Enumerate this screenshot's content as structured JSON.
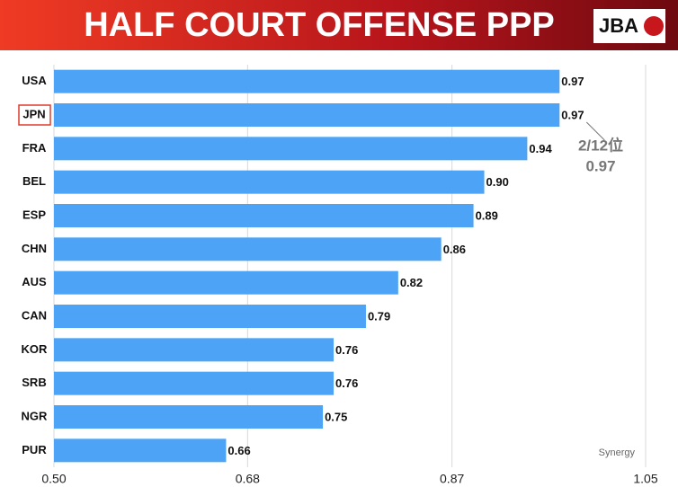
{
  "chart_data": {
    "type": "bar",
    "orientation": "horizontal",
    "title": "HALF COURT OFFENSE PPP",
    "logo": "JBA",
    "categories": [
      "USA",
      "JPN",
      "FRA",
      "BEL",
      "ESP",
      "CHN",
      "AUS",
      "CAN",
      "KOR",
      "SRB",
      "NGR",
      "PUR"
    ],
    "values": [
      0.97,
      0.97,
      0.94,
      0.9,
      0.89,
      0.86,
      0.82,
      0.79,
      0.76,
      0.76,
      0.75,
      0.66
    ],
    "value_labels": [
      "0.97",
      "0.97",
      "0.94",
      "0.90",
      "0.89",
      "0.86",
      "0.82",
      "0.79",
      "0.76",
      "0.76",
      "0.75",
      "0.66"
    ],
    "color": "#4da3f5",
    "xlim": [
      0.5,
      1.05
    ],
    "xticks": [
      {
        "value": 0.5,
        "label": "0.50"
      },
      0.68,
      0.87,
      1.05
    ],
    "grid": true,
    "annotations": [
      "2/12位",
      "0.97"
    ],
    "source": "Synergy"
  }
}
